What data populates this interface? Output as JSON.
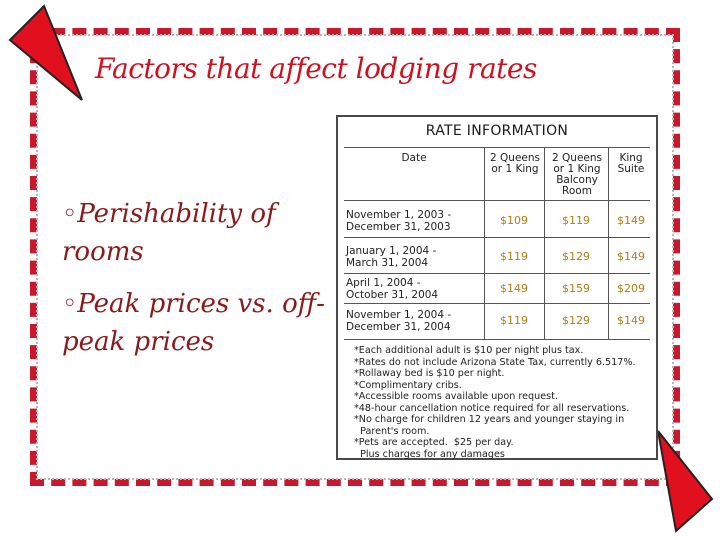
{
  "title": "Factors that affect lodging rates",
  "bullets": [
    {
      "marker": "◦",
      "text": "Perishability of rooms"
    },
    {
      "marker": "◦",
      "text": "Peak prices vs. off-peak prices"
    }
  ],
  "rate_card": {
    "title": "RATE INFORMATION",
    "columns": [
      "Date",
      "2 Queens or 1 King",
      "2 Queens or 1 King Balcony Room",
      "King Suite"
    ],
    "rows": [
      {
        "date_line1": "November 1, 2003 -",
        "date_line2": "December 31, 2003",
        "prices": [
          "$109",
          "$119",
          "$149"
        ]
      },
      {
        "date_line1": "January 1, 2004 -",
        "date_line2": "March 31, 2004",
        "prices": [
          "$119",
          "$129",
          "$149"
        ]
      },
      {
        "date_line1": "April 1, 2004 -",
        "date_line2": "October 31, 2004",
        "prices": [
          "$149",
          "$159",
          "$209"
        ]
      },
      {
        "date_line1": "November 1, 2004 -",
        "date_line2": "December 31, 2004",
        "prices": [
          "$119",
          "$129",
          "$149"
        ]
      }
    ],
    "notes": [
      "*Each additional adult is $10 per night plus tax.",
      "*Rates do not include Arizona State Tax, currently 6.517%.",
      "*Rollaway bed is $10 per night.",
      "*Complimentary cribs.",
      "*Accessible rooms available upon request.",
      "*48-hour cancellation notice required for all reservations.",
      "*No charge for children 12 years and younger staying in",
      "  Parent's room.",
      "*Pets are accepted.  $25 per day.",
      "  Plus charges for any damages"
    ]
  },
  "colors": {
    "title": "#d0101f",
    "bullet": "#8b1a1a",
    "border": "#c9182b",
    "price": "#b07d10"
  }
}
